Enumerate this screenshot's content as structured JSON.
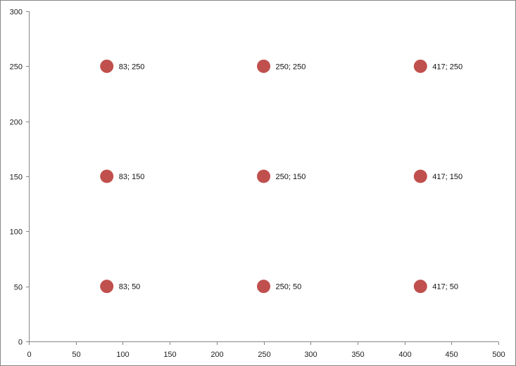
{
  "chart_data": {
    "type": "scatter",
    "title": "",
    "xlabel": "",
    "ylabel": "",
    "xlim": [
      0,
      500
    ],
    "ylim": [
      0,
      300
    ],
    "x_ticks": [
      0,
      50,
      100,
      150,
      200,
      250,
      300,
      350,
      400,
      450,
      500
    ],
    "y_ticks": [
      0,
      50,
      100,
      150,
      200,
      250,
      300
    ],
    "grid": false,
    "legend": "none",
    "marker_color": "#C0504D",
    "series": [
      {
        "points": [
          {
            "x": 83,
            "y": 250,
            "label": "83; 250"
          },
          {
            "x": 250,
            "y": 250,
            "label": "250; 250"
          },
          {
            "x": 417,
            "y": 250,
            "label": "417; 250"
          },
          {
            "x": 83,
            "y": 150,
            "label": "83; 150"
          },
          {
            "x": 250,
            "y": 150,
            "label": "250; 150"
          },
          {
            "x": 417,
            "y": 150,
            "label": "417; 150"
          },
          {
            "x": 83,
            "y": 50,
            "label": "83; 50"
          },
          {
            "x": 250,
            "y": 50,
            "label": "250; 50"
          },
          {
            "x": 417,
            "y": 50,
            "label": "417; 50"
          }
        ]
      }
    ]
  }
}
